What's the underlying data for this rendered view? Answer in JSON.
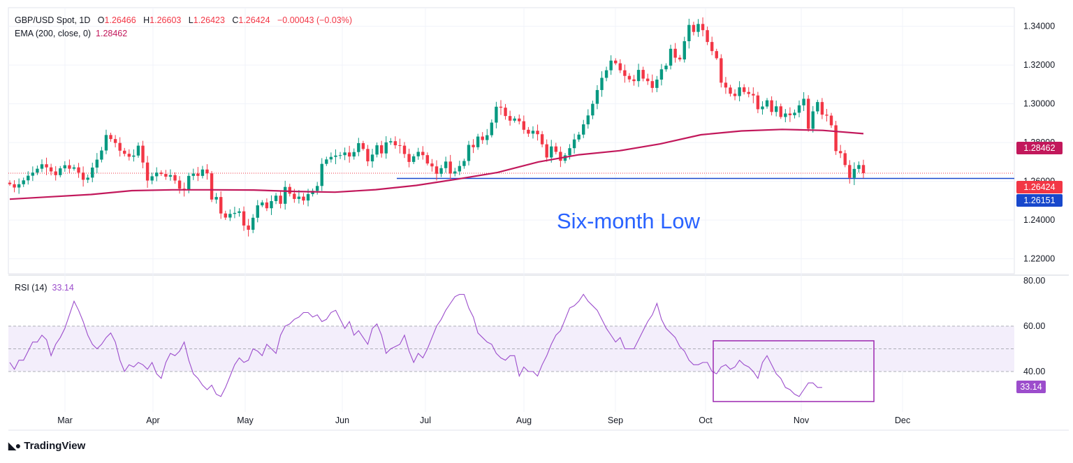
{
  "header": {
    "symbol": "GBP/USD Spot, 1D",
    "o_label": "O",
    "o_value": "1.26466",
    "h_label": "H",
    "h_value": "1.26603",
    "l_label": "L",
    "l_value": "1.26423",
    "c_label": "C",
    "c_value": "1.26424",
    "change": "−0.00043 (−0.03%)",
    "ema_label": "EMA (200, close, 0)",
    "ema_value": "1.28462",
    "rsi_label": "RSI (14)",
    "rsi_value": "33.14"
  },
  "tags": {
    "ema": "1.28462",
    "last": "1.26424",
    "support": "1.26151",
    "rsi": "33.14"
  },
  "annotation": "Six-month Low",
  "brand": "TradingView",
  "colors": {
    "up": "#089981",
    "down": "#f23645",
    "ema": "#c2185b",
    "support": "#1848cc",
    "rsi": "#9c4dcc",
    "rsi_band": "#f3eefb",
    "annotation": "#2962ff"
  },
  "chart_data": [
    {
      "type": "candlestick",
      "title": "GBP/USD Spot, 1D",
      "x_ticks": [
        "Mar",
        "Apr",
        "May",
        "Jun",
        "Jul",
        "Aug",
        "Sep",
        "Oct",
        "Nov",
        "Dec"
      ],
      "y_ticks": [
        "1.34000",
        "1.32000",
        "1.30000",
        "1.28000",
        "1.26000",
        "1.24000",
        "1.22000"
      ],
      "ylim": [
        1.2197,
        1.3496
      ],
      "grid": true,
      "series": [
        {
          "name": "GBP/USD Spot, 1D",
          "close": [
            1.2585,
            1.2568,
            1.2585,
            1.2605,
            1.2629,
            1.2645,
            1.2665,
            1.2688,
            1.2672,
            1.2651,
            1.2632,
            1.2667,
            1.2683,
            1.2665,
            1.2672,
            1.2645,
            1.2608,
            1.2619,
            1.2671,
            1.2712,
            1.2759,
            1.2839,
            1.2818,
            1.2798,
            1.2758,
            1.2742,
            1.2727,
            1.2733,
            1.2784,
            1.2697,
            1.2604,
            1.2626,
            1.2645,
            1.2638,
            1.2624,
            1.2632,
            1.2604,
            1.2562,
            1.2554,
            1.2628,
            1.264,
            1.2628,
            1.2661,
            1.2641,
            1.2506,
            1.2519,
            1.2434,
            1.2413,
            1.2432,
            1.2437,
            1.2445,
            1.2372,
            1.235,
            1.2412,
            1.2476,
            1.2491,
            1.2461,
            1.2498,
            1.2526,
            1.2484,
            1.2571,
            1.2536,
            1.2509,
            1.2521,
            1.2501,
            1.2534,
            1.2551,
            1.2576,
            1.269,
            1.2713,
            1.2726,
            1.2733,
            1.2735,
            1.2749,
            1.2728,
            1.2751,
            1.2797,
            1.2767,
            1.2703,
            1.2738,
            1.2786,
            1.2744,
            1.2801,
            1.2807,
            1.2786,
            1.2784,
            1.2741,
            1.27,
            1.2729,
            1.2752,
            1.2735,
            1.2692,
            1.2677,
            1.2639,
            1.2668,
            1.2702,
            1.264,
            1.2651,
            1.2679,
            1.2705,
            1.2788,
            1.2776,
            1.2831,
            1.2813,
            1.2838,
            1.2903,
            1.2985,
            1.298,
            1.2937,
            1.2913,
            1.2924,
            1.291,
            1.2866,
            1.2846,
            1.2861,
            1.2843,
            1.2791,
            1.2723,
            1.278,
            1.2752,
            1.2706,
            1.2734,
            1.2771,
            1.2816,
            1.2841,
            1.2894,
            1.294,
            1.3,
            1.3071,
            1.3134,
            1.3173,
            1.3223,
            1.3209,
            1.3173,
            1.3144,
            1.3126,
            1.3117,
            1.3175,
            1.313,
            1.3117,
            1.3082,
            1.3125,
            1.3178,
            1.3197,
            1.3284,
            1.3238,
            1.3229,
            1.3323,
            1.3407,
            1.3371,
            1.3412,
            1.338,
            1.3319,
            1.3272,
            1.3235,
            1.3109,
            1.3084,
            1.3052,
            1.304,
            1.3085,
            1.3061,
            1.3051,
            1.3043,
            1.2972,
            1.2986,
            1.3018,
            1.2958,
            1.2987,
            1.2932,
            1.295,
            1.2941,
            1.2954,
            1.2992,
            1.3026,
            1.2871,
            1.2961,
            1.3009,
            1.2944,
            1.2939,
            1.2889,
            1.2756,
            1.2745,
            1.2684,
            1.2618,
            1.2664,
            1.2684,
            1.2642
          ]
        },
        {
          "name": "EMA (200, close, 0)",
          "values": [
            1.2508,
            1.252,
            1.2532,
            1.2552,
            1.2556,
            1.2556,
            1.2555,
            1.2548,
            1.2544,
            1.2557,
            1.2579,
            1.2611,
            1.2646,
            1.27,
            1.2737,
            1.2758,
            1.2793,
            1.284,
            1.286,
            1.2868,
            1.2863,
            1.2846
          ]
        },
        {
          "name": "Six-month Low",
          "values": [
            1.26151
          ]
        }
      ]
    },
    {
      "type": "line",
      "title": "RSI (14)",
      "x_ticks": [
        "Mar",
        "Apr",
        "May",
        "Jun",
        "Jul",
        "Aug",
        "Sep",
        "Oct",
        "Nov",
        "Dec"
      ],
      "y_ticks": [
        "80.00",
        "60.00",
        "40.00"
      ],
      "ylim": [
        24.5,
        80.2
      ],
      "bands": [
        40,
        50,
        60
      ],
      "series": [
        {
          "name": "RSI (14)",
          "values": [
            44.0,
            41.0,
            45.0,
            45.0,
            49.0,
            53.0,
            53.0,
            56.0,
            54.0,
            47.0,
            52.0,
            55.0,
            59.0,
            65.0,
            71.0,
            67.0,
            62.0,
            56.0,
            52.0,
            50.0,
            52.0,
            55.0,
            57.0,
            53.0,
            45.0,
            40.0,
            43.0,
            42.0,
            44.0,
            43.0,
            41.0,
            44.0,
            39.0,
            37.0,
            44.0,
            48.0,
            47.0,
            49.0,
            53.0,
            45.0,
            39.0,
            37.0,
            34.0,
            32.0,
            34.0,
            30.0,
            29.0,
            33.0,
            38.0,
            43.0,
            46.0,
            44.0,
            45.0,
            50.0,
            49.0,
            47.0,
            52.0,
            50.0,
            48.0,
            56.0,
            60.0,
            61.0,
            63.0,
            64.0,
            66.0,
            66.0,
            64.0,
            65.0,
            62.0,
            63.0,
            66.0,
            67.0,
            63.0,
            59.0,
            62.0,
            56.0,
            58.0,
            55.0,
            52.0,
            59.0,
            61.0,
            56.0,
            48.0,
            50.0,
            51.0,
            52.0,
            56.0,
            49.0,
            44.0,
            48.0,
            46.0,
            50.0,
            55.0,
            60.0,
            63.0,
            67.0,
            70.0,
            73.0,
            74.0,
            74.0,
            68.0,
            64.0,
            57.0,
            55.0,
            53.0,
            52.0,
            48.0,
            46.0,
            45.0,
            47.0,
            47.0,
            38.0,
            42.0,
            40.0,
            40.0,
            38.0,
            43.0,
            47.0,
            52.0,
            56.0,
            58.0,
            63.0,
            68.0,
            69.0,
            71.0,
            74.0,
            71.0,
            69.0,
            67.0,
            63.0,
            59.0,
            56.0,
            53.0,
            55.0,
            50.0,
            50.0,
            50.0,
            54.0,
            58.0,
            62.0,
            65.0,
            70.0,
            63.0,
            59.0,
            57.0,
            55.0,
            51.0,
            49.0,
            45.0,
            43.0,
            43.0,
            44.0,
            44.0,
            40.0,
            39.0,
            42.0,
            43.0,
            41.0,
            42.0,
            45.0,
            43.0,
            42.0,
            40.0,
            37.0,
            44.0,
            47.0,
            43.0,
            39.0,
            37.0,
            33.0,
            32.0,
            30.0,
            29.0,
            32.0,
            35.0,
            35.0,
            33.0,
            33.0
          ]
        }
      ]
    }
  ]
}
